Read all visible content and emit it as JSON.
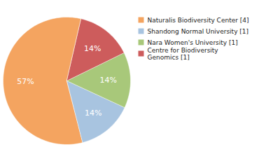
{
  "chart_data": {
    "type": "pie",
    "categories": [
      "Naturalis Biodiversity Center [4]",
      "Shandong Normal University [1]",
      "Nara Women's University [1]",
      "Centre for Biodiversity\nGenomics [1]"
    ],
    "values": [
      57,
      14,
      14,
      14
    ],
    "value_labels": [
      "57%",
      "14%",
      "14%",
      "14%"
    ],
    "colors": [
      "#F4A460",
      "#A8C4E0",
      "#A8C87A",
      "#CD5C5C"
    ],
    "data_labels": true,
    "legend": "right"
  }
}
